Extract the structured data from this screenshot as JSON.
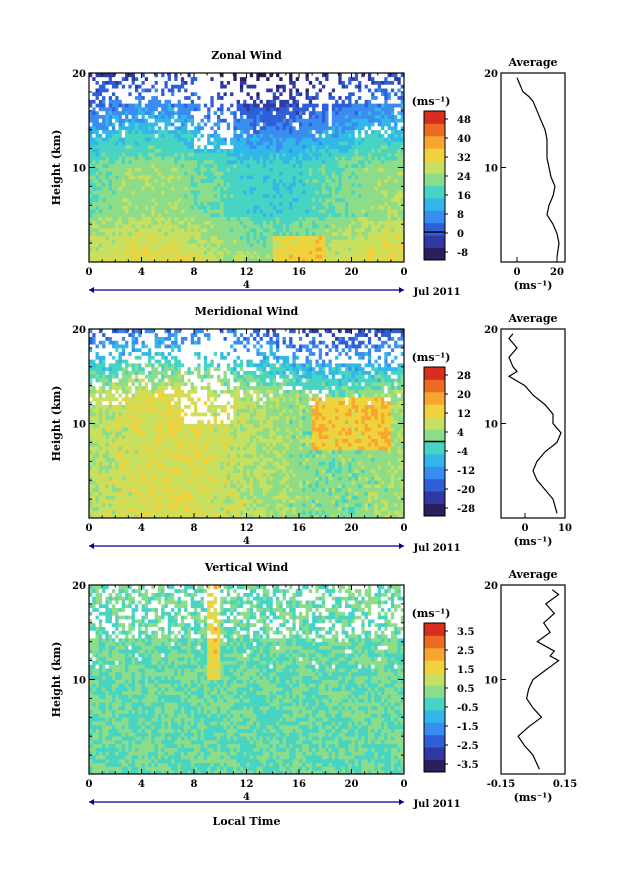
{
  "chart_data": [
    {
      "type": "heatmap",
      "title": "Zonal Wind",
      "ylabel": "Height (km)",
      "xlim": [
        0,
        24
      ],
      "ylim": [
        0,
        20
      ],
      "x_ticks": [
        "0",
        "4",
        "8",
        "12",
        "16",
        "20",
        "0"
      ],
      "y_ticks": [
        "20",
        "10"
      ],
      "date_label": "4",
      "month_label": "Jul 2011",
      "colorbar": {
        "unit": "(ms⁻¹)",
        "ticks": [
          "48",
          "40",
          "32",
          "24",
          "16",
          "8",
          "0",
          "-8"
        ],
        "min": -12,
        "max": 52,
        "contour_at": 0
      },
      "profile": {
        "title": "Average",
        "x_ticks": [
          "0",
          "20"
        ],
        "xlim": [
          -8,
          24
        ],
        "xlabel": "(ms⁻¹)",
        "y_ticks": [
          "20",
          "10"
        ],
        "height": [
          0.5,
          2,
          3,
          4,
          5,
          6,
          7,
          8,
          9,
          10,
          11,
          12,
          13,
          14,
          15,
          16,
          17,
          17.5,
          18,
          18.5,
          19,
          19.5
        ],
        "values": [
          20,
          21,
          20,
          18,
          15,
          16,
          18,
          19,
          17,
          16,
          15,
          15,
          15,
          14,
          12,
          10,
          8,
          6,
          3,
          2,
          1,
          0
        ]
      }
    },
    {
      "type": "heatmap",
      "title": "Meridional Wind",
      "ylabel": "Height (km)",
      "xlim": [
        0,
        24
      ],
      "ylim": [
        0,
        20
      ],
      "x_ticks": [
        "0",
        "4",
        "8",
        "12",
        "16",
        "20",
        "0"
      ],
      "y_ticks": [
        "20",
        "10"
      ],
      "date_label": "4",
      "month_label": "Jul 2011",
      "colorbar": {
        "unit": "(ms⁻¹)",
        "ticks": [
          "28",
          "20",
          "12",
          "4",
          "-4",
          "-12",
          "-20",
          "-28"
        ],
        "min": -32,
        "max": 32,
        "contour_at": 0
      },
      "profile": {
        "title": "Average",
        "x_ticks": [
          "0",
          "10"
        ],
        "xlim": [
          -6,
          10
        ],
        "xlabel": "(ms⁻¹)",
        "y_ticks": [
          "20",
          "10"
        ],
        "height": [
          0.5,
          2,
          3,
          4,
          5,
          6,
          7,
          8,
          9,
          10,
          11,
          12,
          13,
          14,
          14.5,
          15,
          15.5,
          16,
          17,
          18,
          19,
          19.5
        ],
        "values": [
          8,
          7,
          5,
          3,
          2,
          3,
          5,
          8,
          9,
          7,
          7,
          5,
          2,
          0,
          -2,
          -4,
          -2,
          -3,
          -4,
          -2,
          -4,
          -3
        ]
      }
    },
    {
      "type": "heatmap",
      "title": "Vertical Wind",
      "ylabel": "Height (km)",
      "xlabel": "Local Time",
      "xlim": [
        0,
        24
      ],
      "ylim": [
        0,
        20
      ],
      "x_ticks": [
        "0",
        "4",
        "8",
        "12",
        "16",
        "20",
        "0"
      ],
      "y_ticks": [
        "20",
        "10"
      ],
      "date_label": "4",
      "month_label": "Jul 2011",
      "colorbar": {
        "unit": "(ms⁻¹)",
        "ticks": [
          "3.5",
          "2.5",
          "1.5",
          "0.5",
          "-0.5",
          "-1.5",
          "-2.5",
          "-3.5"
        ],
        "min": -4,
        "max": 4,
        "contour_at": null
      },
      "profile": {
        "title": "Average",
        "x_ticks": [
          "-0.15",
          "0.15"
        ],
        "xlim": [
          -0.15,
          0.15
        ],
        "xlabel": "(ms⁻¹)",
        "y_ticks": [
          "20",
          "10"
        ],
        "height": [
          0.5,
          2,
          3,
          4,
          5,
          6,
          7,
          8,
          9,
          10,
          11,
          11.5,
          12,
          12.5,
          13,
          14,
          15,
          16,
          17,
          18,
          19,
          19.5
        ],
        "values": [
          0.03,
          0.0,
          -0.04,
          -0.07,
          -0.02,
          0.04,
          0.0,
          -0.03,
          -0.02,
          0.0,
          0.06,
          0.09,
          0.12,
          0.08,
          0.1,
          0.02,
          0.08,
          0.05,
          0.1,
          0.06,
          0.12,
          0.09
        ]
      }
    }
  ],
  "figure": {
    "colormap": [
      "#2a1f5c",
      "#2f3aa0",
      "#2f5fd8",
      "#3a8cf0",
      "#31b8e8",
      "#48d4c2",
      "#8cdc8a",
      "#c8e060",
      "#f0d23c",
      "#f7a630",
      "#ee6a24",
      "#d92e1c"
    ],
    "missing_color": "#ffffff"
  }
}
